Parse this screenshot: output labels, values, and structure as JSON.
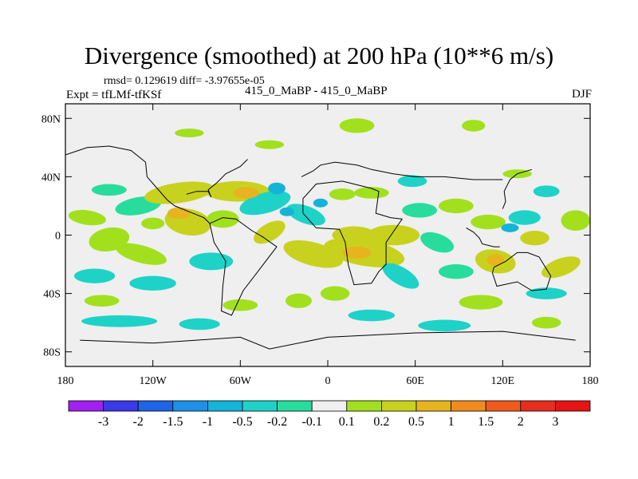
{
  "header": {
    "title": "Divergence (smoothed) at 200 hPa (10**6 m/s)",
    "stats": "rmsd= 0.129619 diff= -3.97655e-05",
    "expt": "Expt = tfLMf-tfKSf",
    "center_label": "415_0_MaBP - 415_0_MaBP",
    "season": "DJF"
  },
  "chart_data": {
    "type": "heatmap",
    "title": "Divergence (smoothed) at 200 hPa (10**6 m/s)",
    "x_ticks": [
      "180",
      "120W",
      "60W",
      "0",
      "60E",
      "120E",
      "180"
    ],
    "y_ticks": [
      "80N",
      "40N",
      "0",
      "40S",
      "80S"
    ],
    "xlim": [
      -180,
      180
    ],
    "ylim": [
      -90,
      90
    ],
    "x_tick_values": [
      -180,
      -120,
      -60,
      0,
      60,
      120,
      180
    ],
    "y_tick_values": [
      80,
      40,
      0,
      -40,
      -80
    ],
    "colorbar": {
      "labels": [
        "-3",
        "-2",
        "-1.5",
        "-1",
        "-0.5",
        "-0.2",
        "-0.1",
        "0.1",
        "0.2",
        "0.5",
        "1",
        "1.5",
        "2",
        "3"
      ],
      "colors": [
        "#a020f0",
        "#3a3ae8",
        "#1e64e6",
        "#1e90e6",
        "#14b4d8",
        "#1ed2c8",
        "#28dc9e",
        "#efefef",
        "#a2e01e",
        "#c8d21e",
        "#e6b41e",
        "#f08c1e",
        "#f05a1e",
        "#e62d1e",
        "#e61414"
      ]
    },
    "blobs": [
      {
        "lon": -150,
        "lat": 31,
        "rx": 12,
        "ry": 4,
        "level": 6,
        "rot": 0
      },
      {
        "lon": -165,
        "lat": 12,
        "rx": 13,
        "ry": 5,
        "level": 8,
        "rot": 8
      },
      {
        "lon": -130,
        "lat": 20,
        "rx": 16,
        "ry": 6,
        "level": 6,
        "rot": -10
      },
      {
        "lon": -102,
        "lat": 29,
        "rx": 24,
        "ry": 7,
        "level": 9,
        "rot": -8
      },
      {
        "lon": -62,
        "lat": 30,
        "rx": 22,
        "ry": 7,
        "level": 9,
        "rot": 0
      },
      {
        "lon": -96,
        "lat": 9,
        "rx": 16,
        "ry": 9,
        "level": 9,
        "rot": 10
      },
      {
        "lon": -72,
        "lat": 11,
        "rx": 11,
        "ry": 6,
        "level": 8,
        "rot": 0
      },
      {
        "lon": -150,
        "lat": -3,
        "rx": 14,
        "ry": 8,
        "level": 8,
        "rot": -10
      },
      {
        "lon": -128,
        "lat": -13,
        "rx": 18,
        "ry": 6,
        "level": 8,
        "rot": 15
      },
      {
        "lon": -160,
        "lat": -28,
        "rx": 14,
        "ry": 5,
        "level": 5,
        "rot": 0
      },
      {
        "lon": -120,
        "lat": -33,
        "rx": 16,
        "ry": 5,
        "level": 5,
        "rot": 0
      },
      {
        "lon": -80,
        "lat": -18,
        "rx": 15,
        "ry": 6,
        "level": 5,
        "rot": 0
      },
      {
        "lon": -143,
        "lat": -59,
        "rx": 26,
        "ry": 4,
        "level": 5,
        "rot": 0
      },
      {
        "lon": -88,
        "lat": -61,
        "rx": 14,
        "ry": 4,
        "level": 5,
        "rot": 0
      },
      {
        "lon": -155,
        "lat": -45,
        "rx": 12,
        "ry": 4,
        "level": 8,
        "rot": 0
      },
      {
        "lon": -43,
        "lat": 22,
        "rx": 18,
        "ry": 7,
        "level": 5,
        "rot": -15
      },
      {
        "lon": -15,
        "lat": 14,
        "rx": 14,
        "ry": 6,
        "level": 5,
        "rot": 20
      },
      {
        "lon": -40,
        "lat": 2,
        "rx": 12,
        "ry": 6,
        "level": 9,
        "rot": -30
      },
      {
        "lon": -10,
        "lat": -13,
        "rx": 21,
        "ry": 8,
        "level": 9,
        "rot": 15
      },
      {
        "lon": 25,
        "lat": -12,
        "rx": 28,
        "ry": 9,
        "level": 9,
        "rot": 10
      },
      {
        "lon": 18,
        "lat": 0,
        "rx": 15,
        "ry": 6,
        "level": 9,
        "rot": 0
      },
      {
        "lon": 45,
        "lat": 0,
        "rx": 18,
        "ry": 7,
        "level": 9,
        "rot": 0
      },
      {
        "lon": 50,
        "lat": -28,
        "rx": 14,
        "ry": 6,
        "level": 5,
        "rot": 30
      },
      {
        "lon": 5,
        "lat": -40,
        "rx": 10,
        "ry": 5,
        "level": 8,
        "rot": 0
      },
      {
        "lon": -20,
        "lat": -45,
        "rx": 9,
        "ry": 5,
        "level": 8,
        "rot": 0
      },
      {
        "lon": 30,
        "lat": -55,
        "rx": 16,
        "ry": 4,
        "level": 5,
        "rot": 0
      },
      {
        "lon": 80,
        "lat": -62,
        "rx": 18,
        "ry": 4,
        "level": 5,
        "rot": 0
      },
      {
        "lon": 105,
        "lat": -46,
        "rx": 15,
        "ry": 5,
        "level": 8,
        "rot": 0
      },
      {
        "lon": 63,
        "lat": 17,
        "rx": 12,
        "ry": 5,
        "level": 6,
        "rot": 0
      },
      {
        "lon": 30,
        "lat": 29,
        "rx": 12,
        "ry": 4,
        "level": 8,
        "rot": 0
      },
      {
        "lon": 10,
        "lat": 28,
        "rx": 9,
        "ry": 4,
        "level": 8,
        "rot": 0
      },
      {
        "lon": 58,
        "lat": 37,
        "rx": 10,
        "ry": 4,
        "level": 5,
        "rot": 0
      },
      {
        "lon": 88,
        "lat": 20,
        "rx": 12,
        "ry": 5,
        "level": 8,
        "rot": 0
      },
      {
        "lon": 110,
        "lat": 9,
        "rx": 12,
        "ry": 5,
        "level": 8,
        "rot": 0
      },
      {
        "lon": 135,
        "lat": 12,
        "rx": 11,
        "ry": 5,
        "level": 5,
        "rot": 0
      },
      {
        "lon": 150,
        "lat": 30,
        "rx": 9,
        "ry": 4,
        "level": 5,
        "rot": 0
      },
      {
        "lon": 170,
        "lat": 10,
        "rx": 10,
        "ry": 7,
        "level": 8,
        "rot": 0
      },
      {
        "lon": 75,
        "lat": -5,
        "rx": 12,
        "ry": 6,
        "level": 6,
        "rot": 20
      },
      {
        "lon": 115,
        "lat": -18,
        "rx": 14,
        "ry": 8,
        "level": 9,
        "rot": 10
      },
      {
        "lon": 142,
        "lat": -2,
        "rx": 10,
        "ry": 5,
        "level": 9,
        "rot": 0
      },
      {
        "lon": 160,
        "lat": -22,
        "rx": 14,
        "ry": 6,
        "level": 9,
        "rot": -20
      },
      {
        "lon": 88,
        "lat": -25,
        "rx": 12,
        "ry": 5,
        "level": 6,
        "rot": 0
      },
      {
        "lon": 150,
        "lat": -40,
        "rx": 14,
        "ry": 4,
        "level": 5,
        "rot": 0
      },
      {
        "lon": 150,
        "lat": -60,
        "rx": 10,
        "ry": 4,
        "level": 8,
        "rot": 0
      },
      {
        "lon": 100,
        "lat": 75,
        "rx": 8,
        "ry": 4,
        "level": 8,
        "rot": 0
      },
      {
        "lon": 20,
        "lat": 75,
        "rx": 12,
        "ry": 5,
        "level": 8,
        "rot": 0
      },
      {
        "lon": -95,
        "lat": 70,
        "rx": 10,
        "ry": 3,
        "level": 8,
        "rot": 0
      },
      {
        "lon": -40,
        "lat": 62,
        "rx": 10,
        "ry": 3,
        "level": 8,
        "rot": 0
      },
      {
        "lon": 130,
        "lat": 42,
        "rx": 10,
        "ry": 3,
        "level": 8,
        "rot": 0
      },
      {
        "lon": -60,
        "lat": -48,
        "rx": 12,
        "ry": 4,
        "level": 8,
        "rot": 0
      },
      {
        "lon": -102,
        "lat": 15,
        "rx": 8,
        "ry": 4,
        "level": 10,
        "rot": 0
      },
      {
        "lon": -56,
        "lat": 29,
        "rx": 9,
        "ry": 4,
        "level": 10,
        "rot": 0
      },
      {
        "lon": 20,
        "lat": -12,
        "rx": 10,
        "ry": 4,
        "level": 10,
        "rot": 0
      },
      {
        "lon": 115,
        "lat": -17,
        "rx": 6,
        "ry": 4,
        "level": 10,
        "rot": 0
      },
      {
        "lon": -120,
        "lat": 8,
        "rx": 8,
        "ry": 4,
        "level": 8,
        "rot": 0
      },
      {
        "lon": -35,
        "lat": 32,
        "rx": 6,
        "ry": 4,
        "level": 4,
        "rot": 0
      },
      {
        "lon": -28,
        "lat": 16,
        "rx": 5,
        "ry": 3,
        "level": 4,
        "rot": 0
      },
      {
        "lon": 125,
        "lat": 5,
        "rx": 6,
        "ry": 3,
        "level": 4,
        "rot": 0
      },
      {
        "lon": -5,
        "lat": 22,
        "rx": 5,
        "ry": 3,
        "level": 4,
        "rot": 0
      }
    ],
    "coastlines": [
      [
        [
          -18,
          40
        ],
        [
          -10,
          44
        ],
        [
          -5,
          48
        ],
        [
          5,
          50
        ],
        [
          20,
          48
        ],
        [
          30,
          45
        ],
        [
          45,
          42
        ],
        [
          60,
          40
        ],
        [
          80,
          40
        ],
        [
          100,
          38
        ],
        [
          120,
          38
        ]
      ],
      [
        [
          -17,
          15
        ],
        [
          -17,
          25
        ],
        [
          -8,
          35
        ],
        [
          10,
          37
        ],
        [
          30,
          32
        ],
        [
          35,
          30
        ],
        [
          33,
          15
        ],
        [
          43,
          12
        ],
        [
          51,
          11
        ],
        [
          40,
          -5
        ],
        [
          40,
          -20
        ],
        [
          35,
          -25
        ],
        [
          30,
          -33
        ],
        [
          18,
          -34
        ],
        [
          14,
          -20
        ],
        [
          12,
          -5
        ],
        [
          8,
          4
        ],
        [
          -8,
          5
        ],
        [
          -17,
          15
        ]
      ],
      [
        [
          -81,
          8
        ],
        [
          -78,
          -5
        ],
        [
          -70,
          -18
        ],
        [
          -72,
          -35
        ],
        [
          -73,
          -52
        ],
        [
          -66,
          -55
        ],
        [
          -58,
          -38
        ],
        [
          -48,
          -25
        ],
        [
          -35,
          -8
        ],
        [
          -45,
          -1
        ],
        [
          -52,
          3
        ],
        [
          -63,
          11
        ],
        [
          -72,
          12
        ],
        [
          -81,
          8
        ]
      ],
      [
        [
          -170,
          -72
        ],
        [
          -120,
          -74
        ],
        [
          -90,
          -72
        ],
        [
          -60,
          -70
        ],
        [
          -40,
          -78
        ],
        [
          0,
          -70
        ],
        [
          60,
          -67
        ],
        [
          120,
          -66
        ],
        [
          170,
          -72
        ]
      ],
      [
        [
          114,
          -22
        ],
        [
          113,
          -26
        ],
        [
          116,
          -35
        ],
        [
          130,
          -32
        ],
        [
          140,
          -38
        ],
        [
          150,
          -37
        ],
        [
          153,
          -28
        ],
        [
          145,
          -15
        ],
        [
          137,
          -12
        ],
        [
          130,
          -12
        ],
        [
          122,
          -18
        ],
        [
          114,
          -22
        ]
      ],
      [
        [
          95,
          5
        ],
        [
          100,
          2
        ],
        [
          104,
          -2
        ],
        [
          106,
          -6
        ],
        [
          114,
          -8
        ],
        [
          118,
          -8
        ]
      ],
      [
        [
          120,
          18
        ],
        [
          122,
          23
        ],
        [
          121,
          30
        ],
        [
          125,
          38
        ],
        [
          130,
          42
        ],
        [
          140,
          45
        ]
      ],
      [
        [
          -180,
          55
        ],
        [
          -165,
          60
        ],
        [
          -150,
          61
        ],
        [
          -135,
          58
        ],
        [
          -125,
          50
        ],
        [
          -124,
          40
        ],
        [
          -117,
          32
        ],
        [
          -110,
          24
        ],
        [
          -105,
          20
        ],
        [
          -95,
          16
        ],
        [
          -85,
          12
        ],
        [
          -81,
          8
        ]
      ],
      [
        [
          -97,
          28
        ],
        [
          -90,
          30
        ],
        [
          -82,
          30
        ],
        [
          -80,
          26
        ],
        [
          -82,
          31
        ],
        [
          -76,
          36
        ],
        [
          -70,
          42
        ],
        [
          -66,
          44
        ],
        [
          -60,
          47
        ],
        [
          -55,
          52
        ]
      ]
    ]
  }
}
